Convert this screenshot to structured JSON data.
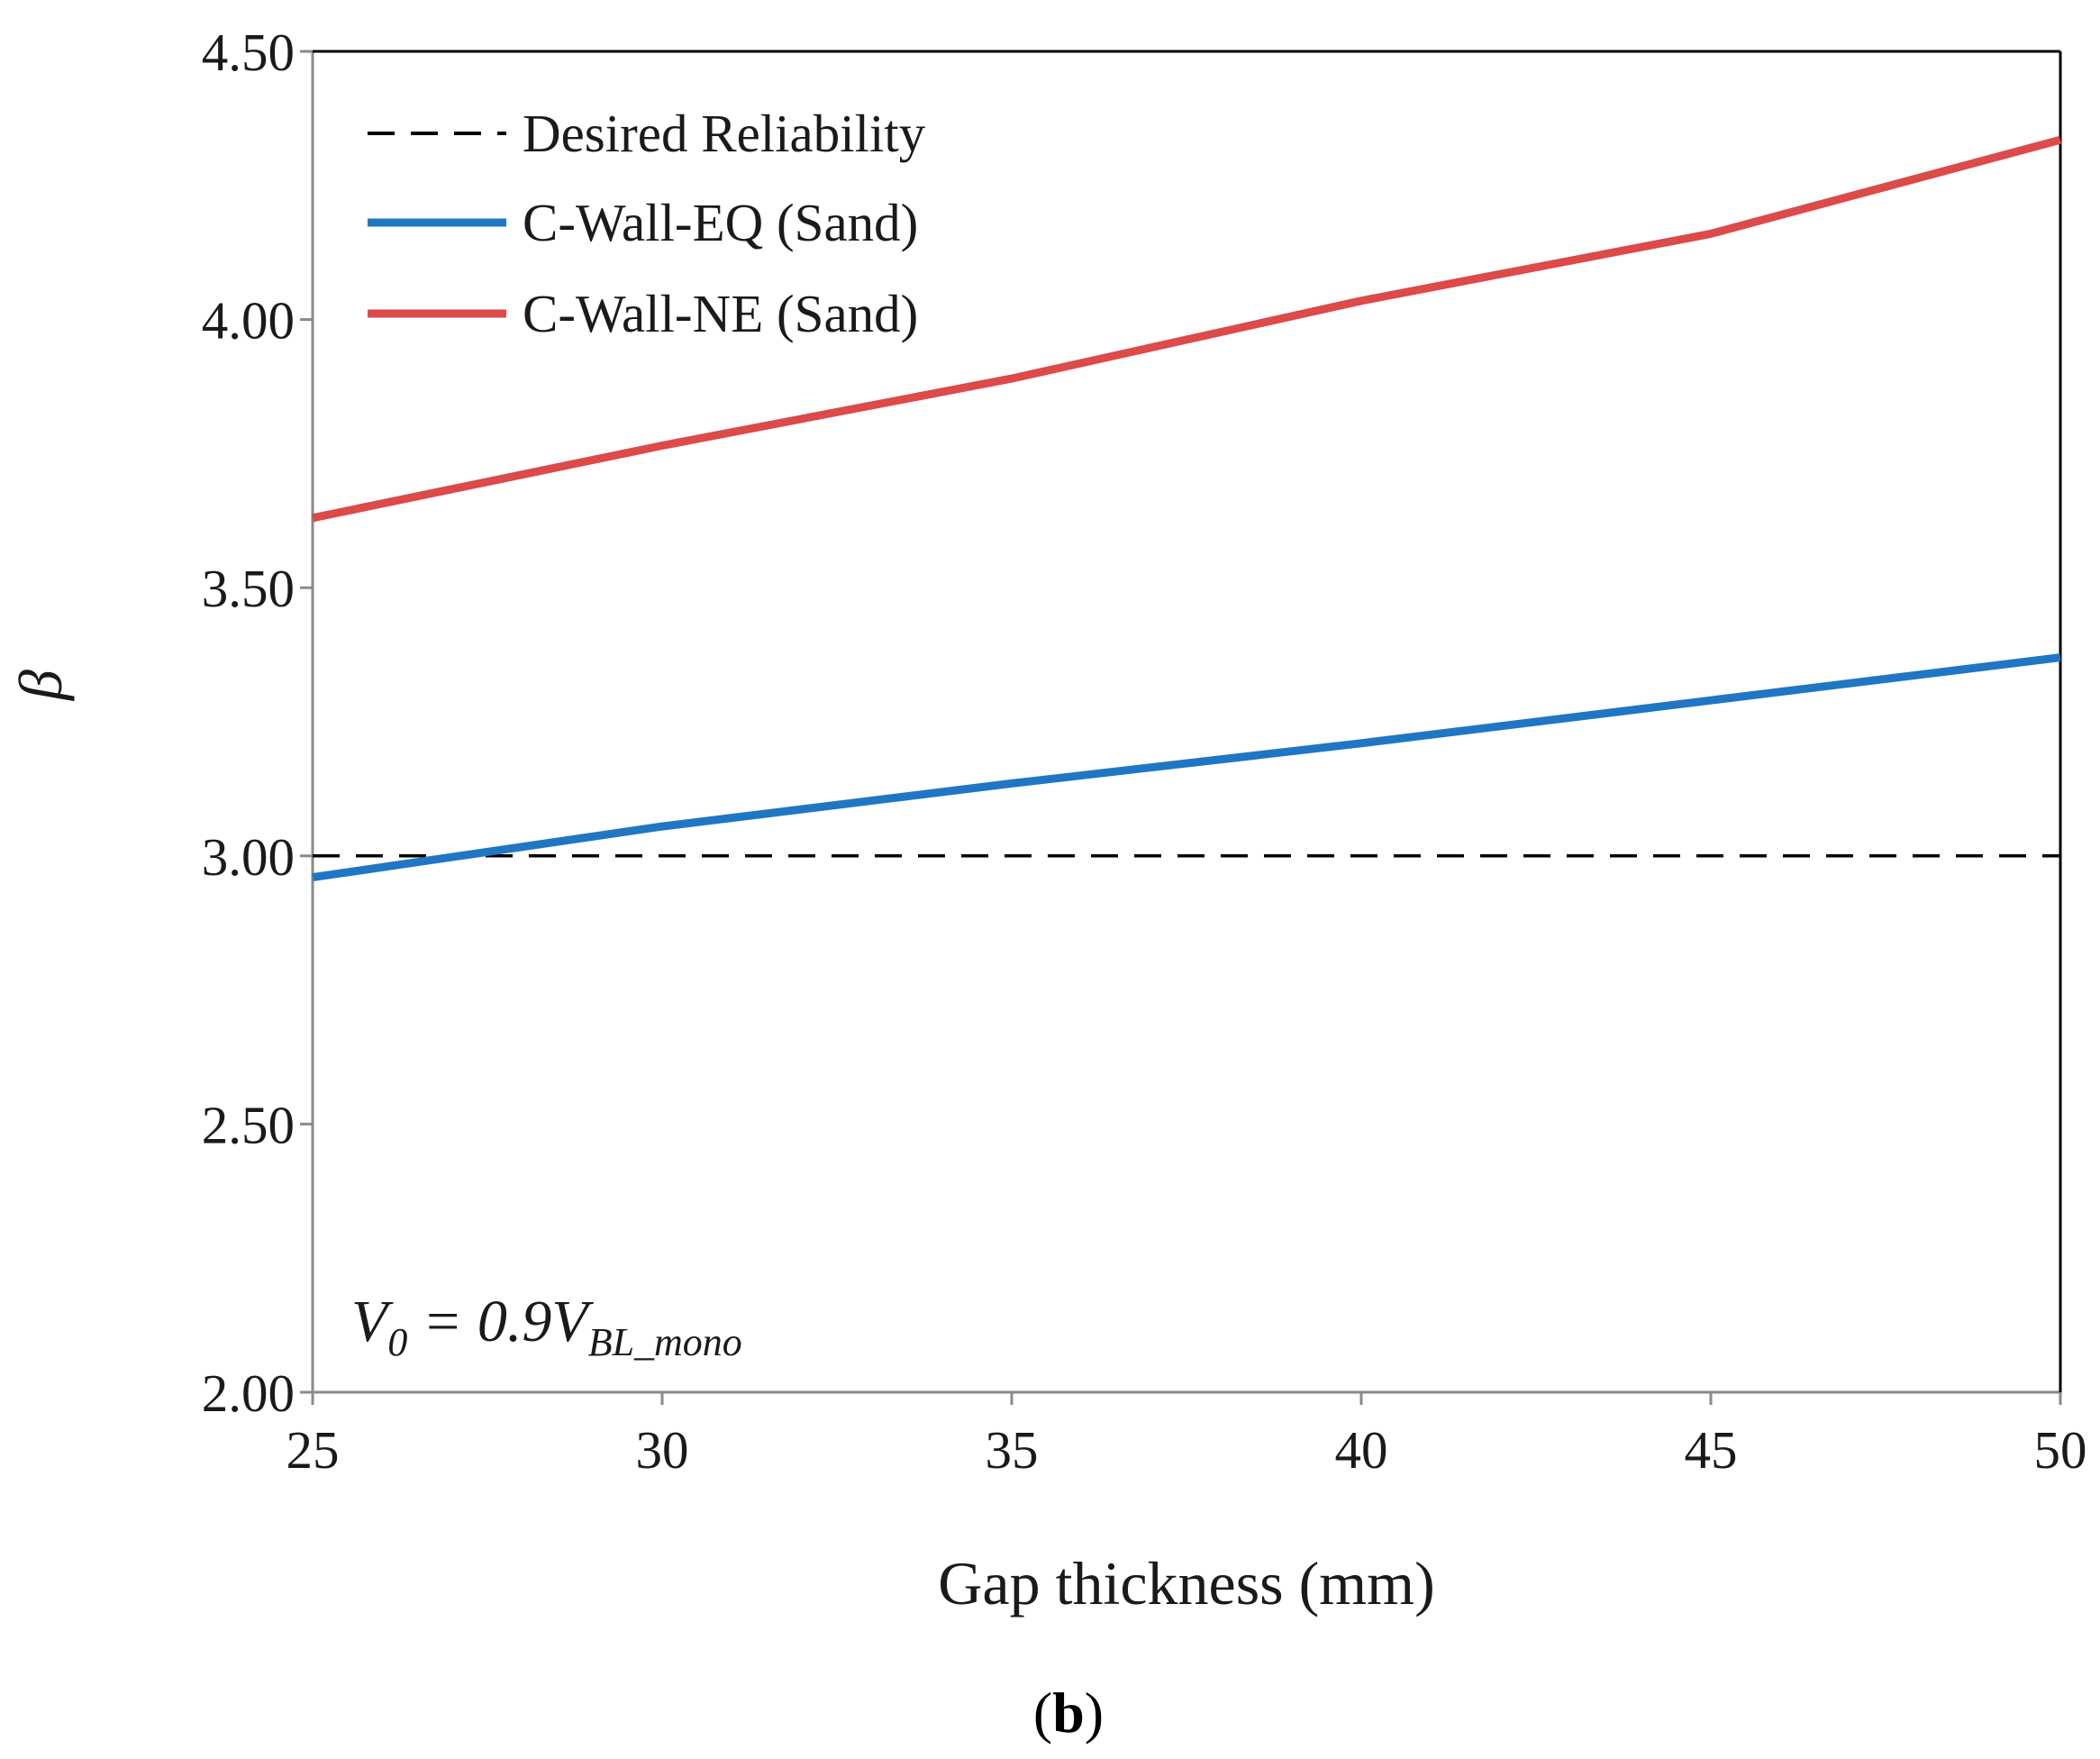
{
  "chart_data": {
    "type": "line",
    "title": "",
    "xlabel": "Gap thickness (mm)",
    "ylabel": "β",
    "xlim": [
      25,
      50
    ],
    "ylim": [
      2.0,
      4.5
    ],
    "xticks": [
      "25",
      "30",
      "35",
      "40",
      "45",
      "50"
    ],
    "yticks": [
      "2.00",
      "2.50",
      "3.00",
      "3.50",
      "4.00",
      "4.50"
    ],
    "grid": false,
    "legend_position": "top-left",
    "x": [
      25,
      30,
      35,
      40,
      45,
      50
    ],
    "series": [
      {
        "name": "Desired Reliability",
        "style": "dashed",
        "color": "#000000",
        "values": [
          3.0,
          3.0,
          3.0,
          3.0,
          3.0,
          3.0
        ]
      },
      {
        "name": "C-Wall-EQ (Sand)",
        "style": "solid",
        "color": "#1f77c4",
        "values": [
          2.96,
          3.055,
          3.135,
          3.21,
          3.29,
          3.37
        ]
      },
      {
        "name": "C-Wall-NE (Sand)",
        "style": "solid",
        "color": "#dc4a4a",
        "values": [
          3.63,
          3.765,
          3.89,
          4.035,
          4.16,
          4.335
        ]
      }
    ],
    "annotation": {
      "main": "V",
      "sub0": "0",
      "equals": " = 0.9V",
      "sub1": "BL_mono"
    },
    "panel_label": {
      "open": "(",
      "letter": "b",
      "close": ")"
    }
  }
}
